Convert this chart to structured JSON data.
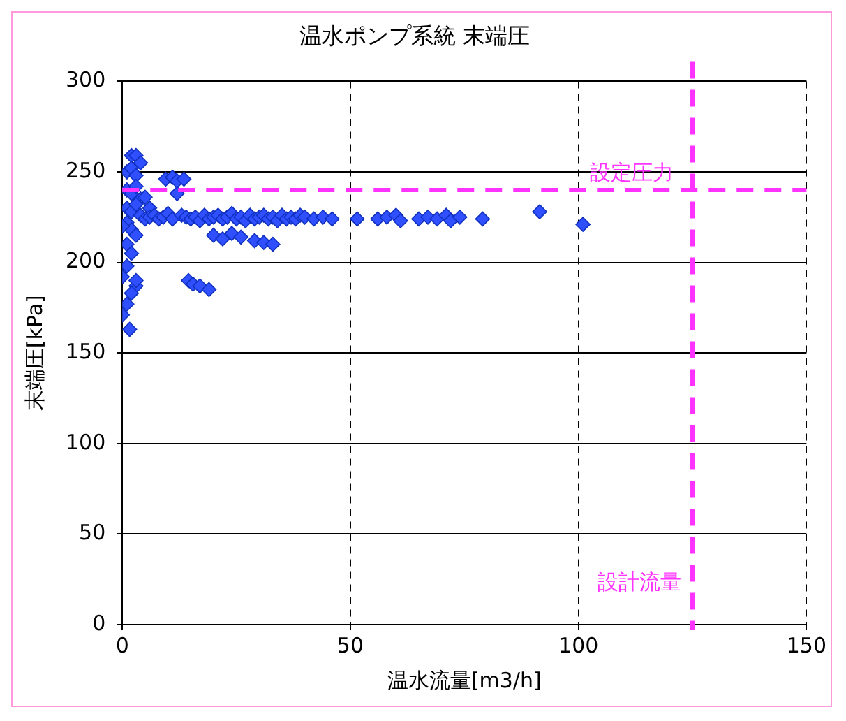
{
  "chart_data": {
    "type": "scatter",
    "title": "温水ポンプ系統 末端圧",
    "xlabel": "温水流量[m3/h]",
    "ylabel": "末端圧[kPa]",
    "xlim": [
      0,
      150
    ],
    "xticks": [
      0,
      50,
      100,
      150
    ],
    "ylim": [
      0,
      300
    ],
    "yticks": [
      0,
      50,
      100,
      150,
      200,
      250,
      300
    ],
    "grid": true,
    "marker": "diamond",
    "legend": false,
    "ref_lines": [
      {
        "axis": "y",
        "value": 240,
        "label": "設定圧力",
        "color": "#ff33ff",
        "line_style": "dashed"
      },
      {
        "axis": "x",
        "value": 125,
        "label": "設計流量",
        "color": "#ff33ff",
        "line_style": "dashed"
      }
    ],
    "series": [
      {
        "color": "#3050ff",
        "x": [
          2,
          3,
          1,
          2,
          3,
          4,
          1,
          2,
          3,
          4,
          5,
          1,
          2,
          3,
          4,
          5,
          6,
          1,
          2,
          3,
          0,
          1,
          2,
          0,
          1,
          3,
          1.6,
          0,
          1,
          2,
          3,
          9.5,
          11,
          12,
          13.5,
          12,
          6,
          7,
          8,
          9,
          10,
          11,
          13,
          14,
          15,
          16,
          17,
          18,
          19,
          20,
          21,
          22,
          23,
          24,
          25,
          26,
          27,
          28,
          29,
          30,
          31,
          32,
          33,
          34,
          35,
          36,
          37,
          38,
          39,
          40,
          42,
          44,
          46,
          20,
          22,
          24,
          26,
          29,
          31,
          33,
          14.5,
          15.5,
          17,
          19,
          51.5,
          56,
          58,
          60,
          61,
          65,
          67,
          69,
          71,
          72,
          74,
          79,
          91.5,
          101
        ],
        "values": [
          259,
          259,
          250,
          252,
          248,
          255,
          240,
          238,
          242,
          235,
          236,
          230,
          228,
          232,
          226,
          224,
          230,
          222,
          218,
          215,
          220,
          210,
          205,
          192,
          198,
          187,
          163,
          171,
          177,
          183,
          190,
          246,
          247,
          245,
          246,
          238,
          225,
          226,
          224,
          225,
          227,
          224,
          226,
          225,
          224,
          225,
          223,
          226,
          224,
          225,
          226,
          224,
          225,
          227,
          224,
          225,
          223,
          226,
          224,
          225,
          226,
          224,
          225,
          223,
          226,
          224,
          225,
          224,
          226,
          225,
          224,
          225,
          224,
          215,
          213,
          216,
          214,
          212,
          211,
          210,
          190,
          188,
          187,
          185,
          224,
          224,
          225,
          226,
          223,
          224,
          225,
          224,
          226,
          223,
          225,
          224,
          228,
          221
        ]
      }
    ]
  }
}
